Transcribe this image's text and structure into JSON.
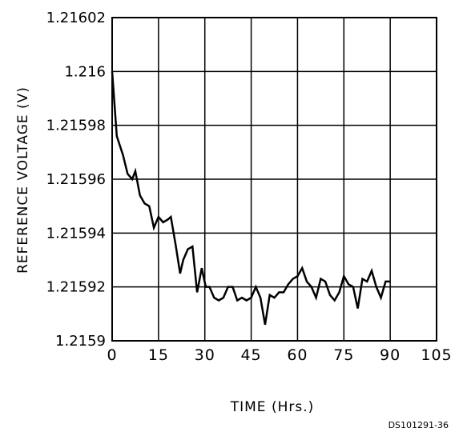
{
  "chart_data": {
    "type": "line",
    "title": "",
    "xlabel": "TIME (Hrs.)",
    "ylabel": "REFERENCE VOLTAGE (V)",
    "xlim": [
      0,
      105
    ],
    "ylim": [
      1.2159,
      1.21602
    ],
    "x_ticks": [
      0,
      15,
      30,
      45,
      60,
      75,
      90,
      105
    ],
    "x_tick_labels": [
      "0",
      "15",
      "30",
      "45",
      "60",
      "75",
      "90",
      "105"
    ],
    "y_ticks": [
      1.2159,
      1.21592,
      1.21594,
      1.21596,
      1.21598,
      1.216,
      1.21602
    ],
    "y_tick_labels": [
      "1.2159",
      "1.21592",
      "1.21594",
      "1.21596",
      "1.21598",
      "1.216",
      "1.21602"
    ],
    "grid": true,
    "line_color": "#000000",
    "series": [
      {
        "x": [
          0,
          1.5,
          3.5,
          5,
          6.5,
          7.5,
          9,
          10.5,
          12,
          13.5,
          15,
          16.5,
          18,
          19,
          20.5,
          22,
          23,
          24.5,
          26,
          27.5,
          29,
          30.3,
          31.5,
          33,
          34.5,
          36,
          37.5,
          39,
          40.5,
          42,
          43.5,
          45,
          46.5,
          48,
          49.5,
          51,
          52.5,
          54,
          55.5,
          57,
          58.5,
          60,
          61.5,
          63,
          64.5,
          66,
          67.5,
          69,
          70.5,
          72,
          73.5,
          75,
          76.5,
          78,
          79.5,
          81,
          82.5,
          84,
          85.5,
          87,
          88.5,
          90
        ],
        "y": [
          1.216,
          1.215976,
          1.215969,
          1.215962,
          1.21596,
          1.215963,
          1.215954,
          1.215951,
          1.21595,
          1.215942,
          1.215946,
          1.215944,
          1.215945,
          1.215946,
          1.215936,
          1.215925,
          1.21593,
          1.215934,
          1.215935,
          1.215918,
          1.215927,
          1.21592,
          1.21592,
          1.215916,
          1.215915,
          1.215916,
          1.21592,
          1.21592,
          1.215915,
          1.215916,
          1.215915,
          1.215916,
          1.21592,
          1.215916,
          1.215906,
          1.215917,
          1.215916,
          1.215918,
          1.215918,
          1.215921,
          1.215923,
          1.215924,
          1.215927,
          1.215922,
          1.21592,
          1.215916,
          1.215923,
          1.215922,
          1.215917,
          1.215915,
          1.215918,
          1.215924,
          1.215921,
          1.21592,
          1.215912,
          1.215923,
          1.215922,
          1.215926,
          1.21592,
          1.215916,
          1.215922,
          1.215922
        ]
      }
    ]
  },
  "doc_code": "DS101291-36"
}
